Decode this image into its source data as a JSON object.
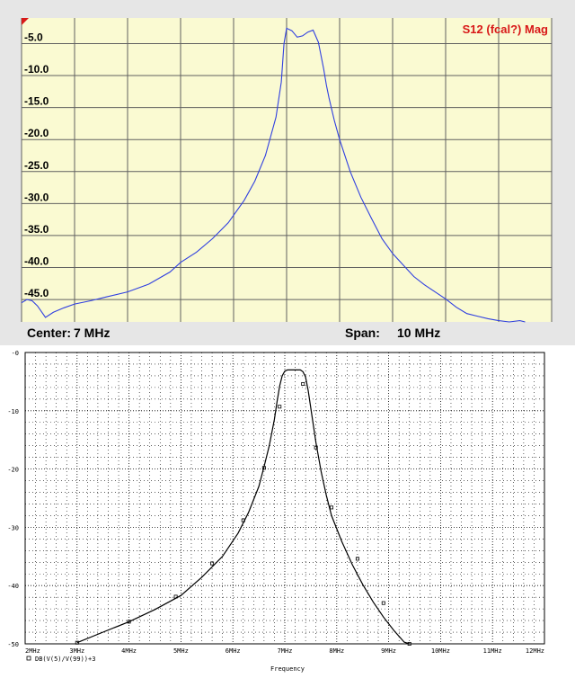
{
  "chart_data": [
    {
      "type": "line",
      "title": "S12 (fcal?) Mag",
      "center_label": "Center:",
      "center_value": "7 MHz",
      "span_label": "Span:",
      "span_value": "10 MHz",
      "x_unit": "MHz",
      "xlim": [
        2,
        12
      ],
      "ylim": [
        -48.5,
        -1
      ],
      "y_ticks": [
        -5.0,
        -10.0,
        -15.0,
        -20.0,
        -25.0,
        -30.0,
        -35.0,
        -40.0,
        -45.0
      ],
      "y_tick_labels": [
        "-5.0",
        "-10.0",
        "-15.0",
        "-20.0",
        "-25.0",
        "-30.0",
        "-35.0",
        "-40.0",
        "-45.0"
      ],
      "grid": true,
      "colors": {
        "background": "#fafad2",
        "grid": "#606060",
        "trace": "#2f3fe0",
        "title": "#d81818",
        "frame": "#e6e6e6"
      },
      "series": [
        {
          "x": [
            2.0,
            2.1,
            2.2,
            2.3,
            2.45,
            2.6,
            2.8,
            3.0,
            3.3,
            3.6,
            4.0,
            4.4,
            4.8,
            5.0,
            5.3,
            5.6,
            5.9,
            6.2,
            6.4,
            6.6,
            6.8,
            6.9,
            6.95,
            7.0,
            7.1,
            7.2,
            7.3,
            7.4,
            7.5,
            7.6,
            7.7,
            7.75,
            7.8,
            7.9,
            8.0,
            8.2,
            8.4,
            8.6,
            8.8,
            9.0,
            9.2,
            9.4,
            9.6,
            9.8,
            10.0,
            10.2,
            10.4,
            10.6,
            10.8,
            11.0,
            11.2,
            11.4,
            11.5
          ],
          "y": [
            -45.5,
            -45.0,
            -45.2,
            -46.0,
            -47.8,
            -47.0,
            -46.3,
            -45.7,
            -45.2,
            -44.6,
            -43.8,
            -42.6,
            -40.7,
            -39.2,
            -37.6,
            -35.5,
            -33.0,
            -29.5,
            -26.5,
            -22.5,
            -16.5,
            -11.0,
            -5.0,
            -2.6,
            -3.0,
            -4.0,
            -3.8,
            -3.2,
            -2.9,
            -4.8,
            -9.0,
            -11.5,
            -13.5,
            -17.0,
            -20.0,
            -25.0,
            -29.0,
            -32.3,
            -35.5,
            -37.8,
            -39.6,
            -41.4,
            -42.7,
            -43.8,
            -44.9,
            -46.2,
            -47.2,
            -47.6,
            -48.0,
            -48.3,
            -48.5,
            -48.3,
            -48.5
          ]
        }
      ]
    },
    {
      "type": "line",
      "xlabel": "Frequency",
      "legend": "DB(V(5)/V(99))+3",
      "xlim": [
        2,
        12
      ],
      "ylim": [
        -50,
        0
      ],
      "x_ticks": [
        2,
        3,
        4,
        5,
        6,
        7,
        8,
        9,
        10,
        11,
        12
      ],
      "x_tick_labels": [
        "2MHz",
        "3MHz",
        "4MHz",
        "5MHz",
        "6MHz",
        "7MHz",
        "8MHz",
        "9MHz",
        "10MHz",
        "11MHz",
        "12MHz"
      ],
      "y_ticks": [
        0,
        -10,
        -20,
        -30,
        -40,
        -50
      ],
      "y_tick_labels": [
        "-0",
        "-10",
        "-20",
        "-30",
        "-40",
        "-50"
      ],
      "grid": true,
      "colors": {
        "grid": "#000000",
        "trace": "#000000",
        "background": "#ffffff"
      },
      "series": [
        {
          "name": "DB(V(5)/V(99))+3",
          "x": [
            3.0,
            3.5,
            4.0,
            4.5,
            5.0,
            5.4,
            5.8,
            6.1,
            6.3,
            6.5,
            6.6,
            6.7,
            6.8,
            6.85,
            6.9,
            6.95,
            7.0,
            7.05,
            7.1,
            7.3,
            7.35,
            7.4,
            7.45,
            7.5,
            7.6,
            7.7,
            7.8,
            7.9,
            8.1,
            8.3,
            8.5,
            8.7,
            8.9,
            9.1,
            9.3,
            9.4
          ],
          "y": [
            -49.8,
            -48.0,
            -46.2,
            -44.1,
            -41.7,
            -38.6,
            -35.0,
            -31.0,
            -27.5,
            -23.0,
            -19.6,
            -16.0,
            -11.5,
            -8.5,
            -5.8,
            -4.0,
            -3.2,
            -3.0,
            -3.0,
            -3.0,
            -3.3,
            -4.2,
            -6.5,
            -9.5,
            -15.5,
            -20.5,
            -24.5,
            -28.0,
            -32.5,
            -36.4,
            -39.8,
            -42.8,
            -45.4,
            -47.7,
            -49.7,
            -50.0
          ]
        }
      ],
      "markers": [
        {
          "x": 3.0,
          "y": -49.8
        },
        {
          "x": 4.0,
          "y": -46.2
        },
        {
          "x": 4.9,
          "y": -41.9
        },
        {
          "x": 5.6,
          "y": -36.2
        },
        {
          "x": 6.2,
          "y": -28.8
        },
        {
          "x": 6.6,
          "y": -19.8
        },
        {
          "x": 6.9,
          "y": -9.3
        },
        {
          "x": 7.35,
          "y": -5.4
        },
        {
          "x": 7.6,
          "y": -16.3
        },
        {
          "x": 7.9,
          "y": -26.6
        },
        {
          "x": 8.4,
          "y": -35.4
        },
        {
          "x": 8.9,
          "y": -43.0
        },
        {
          "x": 9.4,
          "y": -50.0
        }
      ]
    }
  ]
}
